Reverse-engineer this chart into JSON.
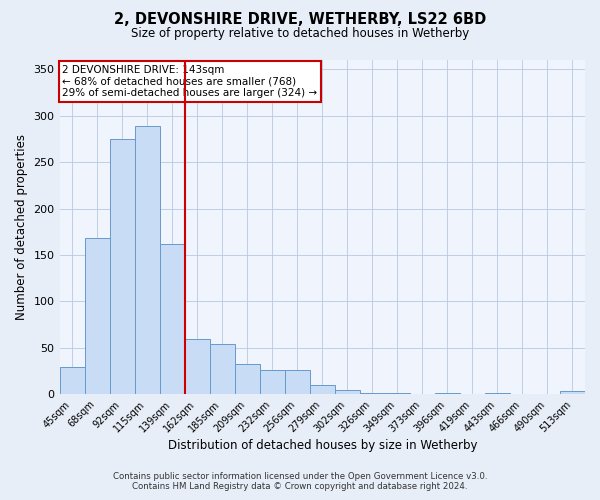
{
  "title": "2, DEVONSHIRE DRIVE, WETHERBY, LS22 6BD",
  "subtitle": "Size of property relative to detached houses in Wetherby",
  "xlabel": "Distribution of detached houses by size in Wetherby",
  "ylabel": "Number of detached properties",
  "bin_labels": [
    "45sqm",
    "68sqm",
    "92sqm",
    "115sqm",
    "139sqm",
    "162sqm",
    "185sqm",
    "209sqm",
    "232sqm",
    "256sqm",
    "279sqm",
    "302sqm",
    "326sqm",
    "349sqm",
    "373sqm",
    "396sqm",
    "419sqm",
    "443sqm",
    "466sqm",
    "490sqm",
    "513sqm"
  ],
  "bar_heights": [
    29,
    168,
    275,
    289,
    162,
    59,
    54,
    33,
    26,
    26,
    10,
    5,
    1,
    1,
    0,
    1,
    0,
    1,
    0,
    0,
    3
  ],
  "bar_color": "#c9dcf5",
  "bar_edge_color": "#6699cc",
  "vline_x": 4.5,
  "vline_color": "#cc0000",
  "annotation_title": "2 DEVONSHIRE DRIVE: 143sqm",
  "annotation_line1": "← 68% of detached houses are smaller (768)",
  "annotation_line2": "29% of semi-detached houses are larger (324) →",
  "annotation_box_color": "#ffffff",
  "annotation_box_edge_color": "#cc0000",
  "ylim": [
    0,
    360
  ],
  "yticks": [
    0,
    50,
    100,
    150,
    200,
    250,
    300,
    350
  ],
  "footer1": "Contains HM Land Registry data © Crown copyright and database right 2024.",
  "footer2": "Contains public sector information licensed under the Open Government Licence v3.0.",
  "bg_color": "#e8eef8",
  "plot_bg_color": "#f0f4fc"
}
